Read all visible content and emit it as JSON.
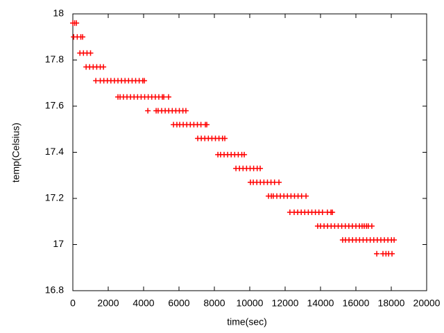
{
  "chart_data": {
    "type": "scatter",
    "color": "#ff0000",
    "xlabel": "time(sec)",
    "ylabel": "temp(Celsius)",
    "xlim": [
      0,
      20000
    ],
    "xticks": [
      0,
      2000,
      4000,
      6000,
      8000,
      10000,
      12000,
      14000,
      16000,
      18000,
      20000
    ],
    "ylim": [
      16.8,
      18
    ],
    "yticks": [
      16.8,
      17,
      17.2,
      17.4,
      17.6,
      17.8,
      18
    ],
    "x": [
      0,
      100,
      200,
      50,
      250,
      450,
      550,
      400,
      600,
      800,
      1000,
      750,
      950,
      1150,
      1350,
      1550,
      1730,
      1300,
      1550,
      1750,
      1950,
      2150,
      2350,
      2550,
      2750,
      2950,
      3150,
      3350,
      3550,
      3750,
      3950,
      4040,
      2550,
      2670,
      2860,
      3060,
      3260,
      3460,
      3660,
      3860,
      4060,
      4260,
      4460,
      4660,
      4860,
      5060,
      5140,
      5410,
      4240,
      4710,
      4820,
      5020,
      5220,
      5420,
      5620,
      5820,
      6020,
      6220,
      6390,
      5690,
      5880,
      6040,
      6240,
      6440,
      6640,
      6840,
      7040,
      7240,
      7490,
      7570,
      7060,
      7260,
      7460,
      7660,
      7860,
      8060,
      8260,
      8460,
      8590,
      8200,
      8350,
      8550,
      8750,
      8950,
      9150,
      9350,
      9550,
      9690,
      9220,
      9420,
      9620,
      9820,
      10020,
      10220,
      10420,
      10590,
      10040,
      10200,
      10400,
      10600,
      10800,
      11000,
      11200,
      11400,
      11650,
      11060,
      11220,
      11330,
      11530,
      11730,
      11930,
      12130,
      12330,
      12530,
      12730,
      12930,
      13180,
      12270,
      12510,
      12710,
      12910,
      13110,
      13310,
      13510,
      13710,
      13910,
      14110,
      14390,
      14590,
      14670,
      13840,
      14000,
      14200,
      14400,
      14600,
      14800,
      15000,
      15200,
      15400,
      15600,
      15800,
      16000,
      16200,
      16350,
      16470,
      16600,
      16700,
      16900,
      15250,
      15410,
      15610,
      15810,
      16010,
      16210,
      16410,
      16610,
      16810,
      17010,
      17210,
      17410,
      17610,
      17810,
      18010,
      18160,
      17180,
      17530,
      17700,
      17850,
      18040
    ],
    "values": [
      17.96,
      17.96,
      17.96,
      17.9,
      17.9,
      17.9,
      17.9,
      17.83,
      17.83,
      17.83,
      17.83,
      17.77,
      17.77,
      17.77,
      17.77,
      17.77,
      17.77,
      17.71,
      17.71,
      17.71,
      17.71,
      17.71,
      17.71,
      17.71,
      17.71,
      17.71,
      17.71,
      17.71,
      17.71,
      17.71,
      17.71,
      17.71,
      17.64,
      17.64,
      17.64,
      17.64,
      17.64,
      17.64,
      17.64,
      17.64,
      17.64,
      17.64,
      17.64,
      17.64,
      17.64,
      17.64,
      17.64,
      17.64,
      17.58,
      17.58,
      17.58,
      17.58,
      17.58,
      17.58,
      17.58,
      17.58,
      17.58,
      17.58,
      17.58,
      17.52,
      17.52,
      17.52,
      17.52,
      17.52,
      17.52,
      17.52,
      17.52,
      17.52,
      17.52,
      17.52,
      17.46,
      17.46,
      17.46,
      17.46,
      17.46,
      17.46,
      17.46,
      17.46,
      17.46,
      17.39,
      17.39,
      17.39,
      17.39,
      17.39,
      17.39,
      17.39,
      17.39,
      17.39,
      17.33,
      17.33,
      17.33,
      17.33,
      17.33,
      17.33,
      17.33,
      17.33,
      17.27,
      17.27,
      17.27,
      17.27,
      17.27,
      17.27,
      17.27,
      17.27,
      17.27,
      17.21,
      17.21,
      17.21,
      17.21,
      17.21,
      17.21,
      17.21,
      17.21,
      17.21,
      17.21,
      17.21,
      17.21,
      17.14,
      17.14,
      17.14,
      17.14,
      17.14,
      17.14,
      17.14,
      17.14,
      17.14,
      17.14,
      17.14,
      17.14,
      17.14,
      17.08,
      17.08,
      17.08,
      17.08,
      17.08,
      17.08,
      17.08,
      17.08,
      17.08,
      17.08,
      17.08,
      17.08,
      17.08,
      17.08,
      17.08,
      17.08,
      17.08,
      17.08,
      17.02,
      17.02,
      17.02,
      17.02,
      17.02,
      17.02,
      17.02,
      17.02,
      17.02,
      17.02,
      17.02,
      17.02,
      17.02,
      17.02,
      17.02,
      17.02,
      16.96,
      16.96,
      16.96,
      16.96,
      16.96
    ]
  }
}
